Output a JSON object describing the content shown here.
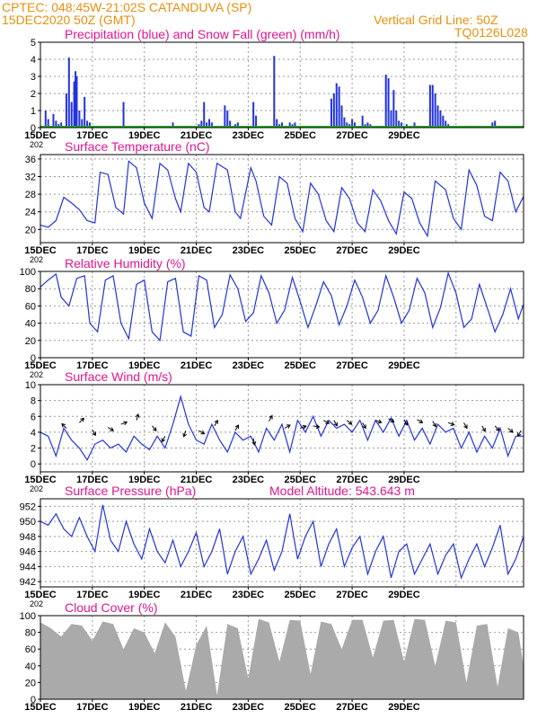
{
  "header": {
    "line1_left": "CPTEC:  048:45W-21:02S  CATANDUVA (SP)",
    "line2_left": "15DEC2020 50Z (GMT)",
    "line1_right": "Vertical Grid Line: 50Z",
    "line2_right": "TQ0126L028"
  },
  "colors": {
    "header": "#e8900c",
    "title": "#e0168f",
    "series": "#2233dd",
    "snow": "#22aa22",
    "cloud": "#aaaaaa",
    "axis": "#000000"
  },
  "x_ticks": [
    "15DEC",
    "17DEC",
    "19DEC",
    "21DEC",
    "23DEC",
    "25DEC",
    "27DEC",
    "29DEC"
  ],
  "x_tick_sub": "202",
  "chart_data": [
    {
      "id": "precip",
      "type": "bar",
      "title": "Precipitation (blue) and Snow Fall (green) (mm/h)",
      "ylim": [
        0,
        5
      ],
      "yticks": [
        0,
        1,
        2,
        3,
        4,
        5
      ],
      "series": [
        {
          "name": "Precipitation",
          "x": [
            0.2,
            0.3,
            0.5,
            0.6,
            0.7,
            0.8,
            1.0,
            1.1,
            1.2,
            1.3,
            1.35,
            1.4,
            1.5,
            1.6,
            1.7,
            1.8,
            1.9,
            3.2,
            5.1,
            6.1,
            6.2,
            6.3,
            6.4,
            6.5,
            6.6,
            7.1,
            7.2,
            7.3,
            7.5,
            7.6,
            8.2,
            8.3,
            9.0,
            9.1,
            9.2,
            9.3,
            9.6,
            9.7,
            9.8,
            11.2,
            11.3,
            11.4,
            11.5,
            11.6,
            11.7,
            11.8,
            11.9,
            12.0,
            12.1,
            12.4,
            12.5,
            12.6,
            12.7,
            13.3,
            13.4,
            13.5,
            13.6,
            13.7,
            13.8,
            13.9,
            14.1,
            14.4,
            15.0,
            15.1,
            15.2,
            15.3,
            15.4,
            15.5,
            15.6,
            15.7,
            17.4,
            17.5
          ],
          "values": [
            1.0,
            0.5,
            0.8,
            0.4,
            0.2,
            0.3,
            2.0,
            4.1,
            1.5,
            2.7,
            3.3,
            3.0,
            1.0,
            0.5,
            1.8,
            0.4,
            0.3,
            1.5,
            0.3,
            0.2,
            0.4,
            1.5,
            0.3,
            0.5,
            0.3,
            1.3,
            1.0,
            0.4,
            0.2,
            0.3,
            1.5,
            0.7,
            4.2,
            0.5,
            0.2,
            0.3,
            0.3,
            0.2,
            0.3,
            1.7,
            2.0,
            2.6,
            2.4,
            1.3,
            0.6,
            0.3,
            0.2,
            0.5,
            0.3,
            0.7,
            0.2,
            0.3,
            0.2,
            3.1,
            2.9,
            1.0,
            2.2,
            1.0,
            0.4,
            0.3,
            0.2,
            0.3,
            2.5,
            2.5,
            2.0,
            1.3,
            1.0,
            0.7,
            0.4,
            0.2,
            0.3,
            0.4
          ]
        },
        {
          "name": "Snow Fall",
          "x": [
            0,
            18.6
          ],
          "values": [
            0,
            0
          ]
        }
      ]
    },
    {
      "id": "temp",
      "type": "line",
      "title": "Surface Temperature (nC)",
      "ylim": [
        17,
        37
      ],
      "yticks": [
        20,
        24,
        28,
        32,
        36
      ],
      "series": [
        {
          "name": "Temperature",
          "x": [
            0,
            0.3,
            0.6,
            0.9,
            1.2,
            1.5,
            1.8,
            2.1,
            2.3,
            2.6,
            2.9,
            3.2,
            3.4,
            3.7,
            4.0,
            4.3,
            4.6,
            4.9,
            5.2,
            5.4,
            5.7,
            6.0,
            6.3,
            6.5,
            6.8,
            7.2,
            7.5,
            7.7,
            8.1,
            8.3,
            8.6,
            8.9,
            9.2,
            9.5,
            9.8,
            10.1,
            10.4,
            10.7,
            11.0,
            11.3,
            11.6,
            11.9,
            12.2,
            12.5,
            12.8,
            13.1,
            13.4,
            13.7,
            14.0,
            14.3,
            14.6,
            14.9,
            15.2,
            15.6,
            15.9,
            16.2,
            16.5,
            16.8,
            17.1,
            17.4,
            17.7,
            18.0,
            18.3,
            18.6
          ],
          "values": [
            21.0,
            20.5,
            22.0,
            27.3,
            26.0,
            24.5,
            22.0,
            21.5,
            33.0,
            32.5,
            25.0,
            23.5,
            35.5,
            34.0,
            26.0,
            22.5,
            35.0,
            33.5,
            27.0,
            24.0,
            35.0,
            33.0,
            25.0,
            24.0,
            35.0,
            33.5,
            24.0,
            22.5,
            34.0,
            31.0,
            23.0,
            21.0,
            32.0,
            30.5,
            22.5,
            19.5,
            30.5,
            28.0,
            22.0,
            19.5,
            29.5,
            27.0,
            21.5,
            19.5,
            29.0,
            26.5,
            22.0,
            19.0,
            28.5,
            27.0,
            21.5,
            18.5,
            31.0,
            29.0,
            22.5,
            20.0,
            33.5,
            30.0,
            23.0,
            22.0,
            33.0,
            31.0,
            24.0,
            27.5
          ]
        }
      ]
    },
    {
      "id": "rh",
      "type": "line",
      "title": "Relative Humidity (%)",
      "ylim": [
        0,
        100
      ],
      "yticks": [
        0,
        20,
        40,
        60,
        80,
        100
      ],
      "series": [
        {
          "name": "Relative Humidity",
          "x": [
            0,
            0.3,
            0.6,
            0.8,
            1.1,
            1.4,
            1.7,
            1.9,
            2.2,
            2.5,
            2.8,
            3.1,
            3.4,
            3.7,
            4.0,
            4.3,
            4.6,
            4.9,
            5.2,
            5.5,
            5.8,
            6.1,
            6.4,
            6.7,
            7.0,
            7.3,
            7.6,
            7.9,
            8.2,
            8.5,
            8.8,
            9.1,
            9.4,
            9.7,
            10.0,
            10.3,
            10.6,
            10.9,
            11.2,
            11.5,
            11.8,
            12.1,
            12.4,
            12.7,
            13.0,
            13.3,
            13.6,
            13.9,
            14.2,
            14.5,
            14.8,
            15.1,
            15.4,
            15.7,
            16.0,
            16.3,
            16.6,
            16.9,
            17.2,
            17.5,
            17.8,
            18.1,
            18.4,
            18.6
          ],
          "values": [
            82,
            90,
            97,
            70,
            60,
            92,
            95,
            40,
            30,
            90,
            95,
            40,
            22,
            85,
            90,
            30,
            20,
            88,
            92,
            30,
            25,
            95,
            90,
            35,
            50,
            96,
            80,
            42,
            52,
            95,
            75,
            40,
            55,
            93,
            65,
            35,
            60,
            88,
            72,
            38,
            60,
            90,
            70,
            40,
            55,
            95,
            70,
            40,
            55,
            92,
            75,
            35,
            58,
            98,
            75,
            35,
            45,
            85,
            58,
            30,
            50,
            80,
            45,
            62
          ]
        }
      ]
    },
    {
      "id": "wind",
      "type": "line",
      "title": "Surface Wind (m/s)",
      "ylim": [
        -1,
        10
      ],
      "yticks": [
        0,
        2,
        4,
        6,
        8,
        10
      ],
      "series": [
        {
          "name": "Wind Speed",
          "x": [
            0,
            0.3,
            0.6,
            0.9,
            1.2,
            1.5,
            1.8,
            2.1,
            2.4,
            2.7,
            3.0,
            3.3,
            3.6,
            3.9,
            4.2,
            4.5,
            4.8,
            5.1,
            5.4,
            5.7,
            6.0,
            6.3,
            6.6,
            6.9,
            7.2,
            7.5,
            7.8,
            8.1,
            8.4,
            8.7,
            9.0,
            9.3,
            9.6,
            9.9,
            10.2,
            10.5,
            10.8,
            11.1,
            11.4,
            11.7,
            12.0,
            12.3,
            12.6,
            12.9,
            13.2,
            13.5,
            13.8,
            14.1,
            14.4,
            14.7,
            15.0,
            15.3,
            15.6,
            15.9,
            16.2,
            16.5,
            16.8,
            17.1,
            17.4,
            17.7,
            18.0,
            18.3,
            18.6
          ],
          "values": [
            4.0,
            3.5,
            1.0,
            4.5,
            3.0,
            2.0,
            0.5,
            2.5,
            3.0,
            2.0,
            2.5,
            1.5,
            3.5,
            2.5,
            1.8,
            3.5,
            2.0,
            5.0,
            8.5,
            5.0,
            3.0,
            2.5,
            5.0,
            3.0,
            1.5,
            4.0,
            3.0,
            3.5,
            1.5,
            4.5,
            3.0,
            5.0,
            1.5,
            5.5,
            4.0,
            6.0,
            3.5,
            5.5,
            4.5,
            5.0,
            4.0,
            5.5,
            3.0,
            5.5,
            4.0,
            5.8,
            3.5,
            5.5,
            3.0,
            4.5,
            2.5,
            5.0,
            4.0,
            4.5,
            2.0,
            4.0,
            1.5,
            3.5,
            2.0,
            4.5,
            1.0,
            3.5,
            3.5
          ]
        }
      ]
    },
    {
      "id": "pres",
      "type": "line",
      "title": "Surface Pressure (hPa)",
      "annotation": "Model Altitude: 543.643 m",
      "ylim": [
        941.3,
        953
      ],
      "yticks": [
        942,
        944,
        946,
        948,
        950,
        952
      ],
      "series": [
        {
          "name": "Pressure",
          "x": [
            0,
            0.3,
            0.6,
            0.9,
            1.2,
            1.5,
            1.8,
            2.1,
            2.4,
            2.7,
            3.0,
            3.3,
            3.6,
            3.9,
            4.2,
            4.5,
            4.8,
            5.1,
            5.4,
            5.7,
            6.0,
            6.3,
            6.6,
            6.9,
            7.2,
            7.5,
            7.8,
            8.1,
            8.4,
            8.7,
            9.0,
            9.3,
            9.6,
            9.9,
            10.2,
            10.5,
            10.8,
            11.1,
            11.4,
            11.7,
            12.0,
            12.3,
            12.6,
            12.9,
            13.2,
            13.5,
            13.8,
            14.1,
            14.4,
            14.7,
            15.0,
            15.3,
            15.6,
            15.9,
            16.2,
            16.5,
            16.8,
            17.1,
            17.4,
            17.7,
            18.0,
            18.3,
            18.6
          ],
          "values": [
            950.0,
            949.5,
            951.0,
            949.0,
            948.0,
            950.5,
            948.0,
            946.0,
            952.2,
            947.5,
            946.0,
            950.0,
            947.0,
            945.0,
            949.0,
            946.0,
            944.5,
            947.5,
            944.0,
            946.0,
            948.5,
            944.0,
            946.0,
            949.0,
            943.0,
            946.0,
            948.0,
            943.0,
            945.0,
            947.5,
            943.5,
            946.0,
            951.0,
            945.0,
            948.0,
            950.0,
            944.0,
            947.0,
            949.0,
            944.0,
            946.5,
            948.0,
            943.0,
            946.0,
            948.0,
            942.5,
            946.0,
            947.0,
            943.0,
            945.0,
            947.0,
            943.0,
            945.5,
            947.0,
            942.5,
            945.0,
            947.0,
            944.0,
            946.5,
            949.5,
            943.0,
            945.0,
            948.0
          ]
        }
      ]
    },
    {
      "id": "cloud",
      "type": "area",
      "title": "Cloud Cover (%)",
      "ylim": [
        0,
        100
      ],
      "yticks": [
        0,
        20,
        40,
        60,
        80,
        100
      ],
      "series": [
        {
          "name": "Cloud Cover",
          "x": [
            0,
            0.4,
            0.8,
            1.2,
            1.6,
            2.0,
            2.4,
            2.8,
            3.2,
            3.6,
            4.0,
            4.4,
            4.8,
            5.2,
            5.6,
            6.0,
            6.4,
            6.8,
            7.2,
            7.6,
            8.0,
            8.4,
            8.8,
            9.2,
            9.6,
            10.0,
            10.4,
            10.8,
            11.2,
            11.6,
            12.0,
            12.4,
            12.8,
            13.2,
            13.6,
            14.0,
            14.4,
            14.8,
            15.2,
            15.6,
            16.0,
            16.4,
            16.8,
            17.2,
            17.6,
            18.0,
            18.4,
            18.6
          ],
          "values": [
            92,
            85,
            75,
            90,
            88,
            70,
            93,
            90,
            60,
            85,
            80,
            55,
            92,
            75,
            10,
            65,
            88,
            5,
            90,
            85,
            25,
            96,
            92,
            45,
            95,
            94,
            30,
            93,
            90,
            60,
            95,
            95,
            50,
            94,
            95,
            45,
            96,
            95,
            40,
            94,
            92,
            20,
            88,
            90,
            15,
            85,
            80,
            40
          ]
        }
      ]
    }
  ]
}
